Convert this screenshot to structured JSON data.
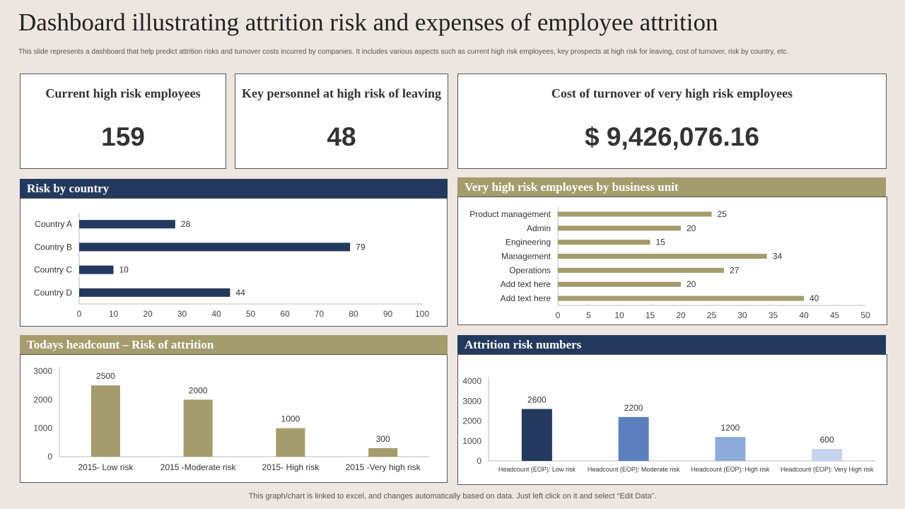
{
  "title": "Dashboard illustrating attrition risk and expenses of employee attrition",
  "subtitle": "This slide represents a dashboard that help predict attrition risks and turnover costs incurred by companies. It includes various aspects such as current high risk employees, key prospects at high risk for leaving, cost of turnover, risk by country, etc.",
  "kpis": {
    "high_risk": {
      "label": "Current high risk employees",
      "value": "159"
    },
    "key_personnel": {
      "label": "Key personnel at high risk of leaving",
      "value": "48"
    },
    "cost": {
      "label": "Cost of turnover of very high risk employees",
      "value": "$ 9,426,076.16"
    }
  },
  "colors": {
    "navy": "#233a5e",
    "olive": "#a49c6c",
    "mid_blue": "#5b80bd",
    "light_blue": "#8eaad8",
    "pale_blue": "#c5d4ec"
  },
  "footer": "This graph/chart is linked to excel,  and changes automatically based on data. Just left click on it and select “Edit Data”.",
  "chart_data": [
    {
      "id": "risk_by_country",
      "type": "bar",
      "orientation": "horizontal",
      "title": "Risk by country",
      "categories": [
        "Country A",
        "Country B",
        "Country C",
        "Country D"
      ],
      "values": [
        28,
        79,
        10,
        44
      ],
      "xlim": [
        0,
        100
      ],
      "ticks": [
        0,
        10,
        20,
        30,
        40,
        50,
        60,
        70,
        80,
        90,
        100
      ],
      "color": "#233a5e"
    },
    {
      "id": "business_unit",
      "type": "bar",
      "orientation": "horizontal",
      "title": "Very high risk employees by business unit",
      "categories": [
        "Product management",
        "Admin",
        "Engineering",
        "Management",
        "Operations",
        "Add text here",
        "Add text here"
      ],
      "values": [
        25,
        20,
        15,
        34,
        27,
        20,
        40
      ],
      "xlim": [
        0,
        50
      ],
      "ticks": [
        0,
        5,
        10,
        15,
        20,
        25,
        30,
        35,
        40,
        45,
        50
      ],
      "color": "#a49c6c"
    },
    {
      "id": "headcount",
      "type": "bar",
      "orientation": "vertical",
      "title": "Todays headcount – Risk of attrition",
      "categories": [
        "2015- Low risk",
        "2015 -Moderate risk",
        "2015- High risk",
        "2015 -Very high risk"
      ],
      "values": [
        2500,
        2000,
        1000,
        300
      ],
      "ylim": [
        0,
        3000
      ],
      "ticks": [
        0,
        1000,
        2000,
        3000
      ],
      "color": "#a49c6c"
    },
    {
      "id": "attrition_numbers",
      "type": "bar",
      "orientation": "vertical",
      "title": "Attrition risk numbers",
      "categories": [
        "Headcount (EOP): Low risk",
        "Headcount (EOP): Moderate risk",
        "Headcount (EOP): High risk",
        "Headcount (EOP): Very High risk"
      ],
      "values": [
        2600,
        2200,
        1200,
        600
      ],
      "ylim": [
        0,
        4000
      ],
      "ticks": [
        0,
        1000,
        2000,
        3000,
        4000
      ],
      "bar_colors": [
        "#233a5e",
        "#5b80bd",
        "#8eaad8",
        "#c5d4ec"
      ]
    }
  ]
}
